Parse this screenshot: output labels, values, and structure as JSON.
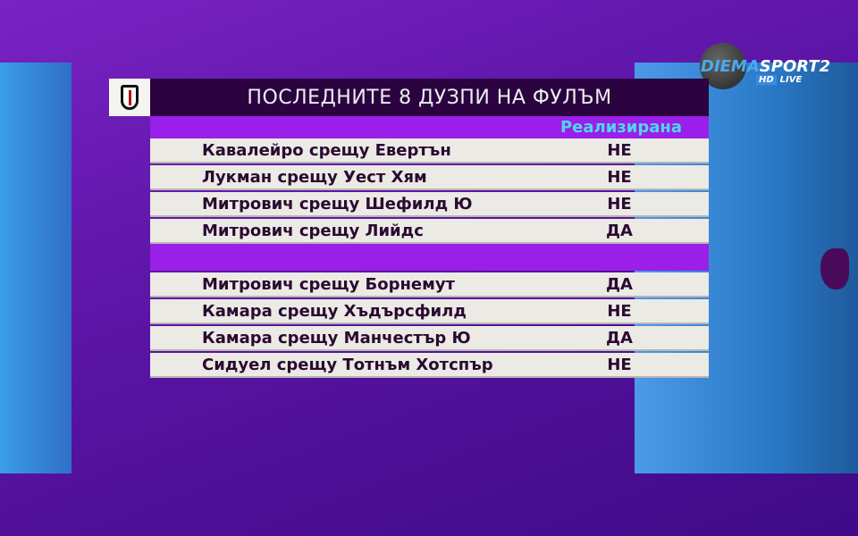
{
  "broadcaster": {
    "name_part1": "DIEMA",
    "name_part2": "SPORT2",
    "hd": "HD",
    "live": "LIVE"
  },
  "table": {
    "title": "ПОСЛЕДНИТЕ 8 ДУЗПИ НА ФУЛЪМ",
    "column_header": "Реализирана",
    "rows": [
      {
        "match": "Кавалейро срещу Евертън",
        "result": "НЕ"
      },
      {
        "match": "Лукман срещу Уест Хям",
        "result": "НЕ"
      },
      {
        "match": "Митрович срещу Шефилд Ю",
        "result": "НЕ"
      },
      {
        "match": "Митрович срещу Лийдс",
        "result": "ДА"
      },
      {
        "match": "Митрович срещу Борнемут",
        "result": "ДА"
      },
      {
        "match": "Камара срещу Хъдърсфилд",
        "result": "НЕ"
      },
      {
        "match": "Камара срещу Манчестър Ю",
        "result": "ДА"
      },
      {
        "match": "Сидуел срещу Тотнъм Хотспър",
        "result": "НЕ"
      }
    ]
  },
  "colors": {
    "accent": "#9a1fe8",
    "header": "#2a0340",
    "highlight": "#4fd8f0"
  }
}
